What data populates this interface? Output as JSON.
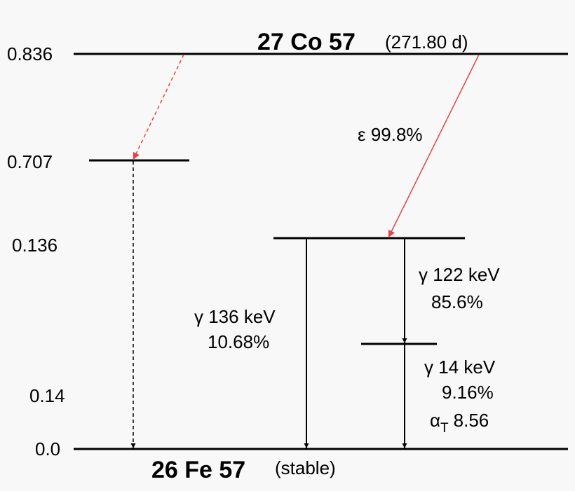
{
  "parent": {
    "nuclide": "27 Co 57",
    "half_life": "(271.80 d)"
  },
  "daughter": {
    "nuclide": "26 Fe 57",
    "note": "(stable)"
  },
  "levels": [
    {
      "label": "0.836"
    },
    {
      "label": "0.707"
    },
    {
      "label": "0.136"
    },
    {
      "label": "0.14"
    },
    {
      "label": "0.0"
    }
  ],
  "transitions": [
    {
      "label": "ε 99.8%"
    },
    {
      "label": "γ 136 keV",
      "intensity": "10.68%"
    },
    {
      "label": "γ 122 keV",
      "intensity": "85.6%"
    },
    {
      "label": "γ 14 keV",
      "intensity": "9.16%",
      "alpha": {
        "symbol": "α",
        "subscript": "T",
        "value": "8.56"
      }
    }
  ]
}
